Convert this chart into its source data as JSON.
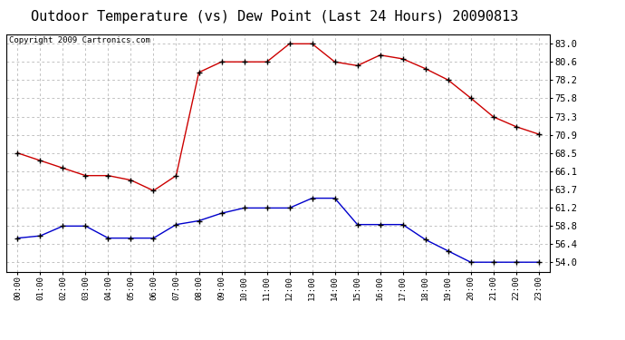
{
  "title": "Outdoor Temperature (vs) Dew Point (Last 24 Hours) 20090813",
  "copyright": "Copyright 2009 Cartronics.com",
  "x_labels": [
    "00:00",
    "01:00",
    "02:00",
    "03:00",
    "04:00",
    "05:00",
    "06:00",
    "07:00",
    "08:00",
    "09:00",
    "10:00",
    "11:00",
    "12:00",
    "13:00",
    "14:00",
    "15:00",
    "16:00",
    "17:00",
    "18:00",
    "19:00",
    "20:00",
    "21:00",
    "22:00",
    "23:00"
  ],
  "temp_data": [
    68.5,
    67.5,
    66.5,
    65.5,
    65.5,
    64.9,
    63.5,
    65.5,
    79.2,
    80.6,
    80.6,
    80.6,
    83.0,
    83.0,
    80.6,
    80.1,
    81.5,
    81.0,
    79.7,
    78.2,
    75.8,
    73.3,
    72.0,
    71.0
  ],
  "dew_data": [
    57.2,
    57.5,
    58.8,
    58.8,
    57.2,
    57.2,
    57.2,
    59.0,
    59.5,
    60.5,
    61.2,
    61.2,
    61.2,
    62.5,
    62.5,
    59.0,
    59.0,
    59.0,
    57.0,
    55.5,
    54.0,
    54.0,
    54.0,
    54.0
  ],
  "temp_color": "#cc0000",
  "dew_color": "#0000cc",
  "yticks": [
    54.0,
    56.4,
    58.8,
    61.2,
    63.7,
    66.1,
    68.5,
    70.9,
    73.3,
    75.8,
    78.2,
    80.6,
    83.0
  ],
  "ymin": 52.7,
  "ymax": 84.3,
  "bg_color": "#ffffff",
  "plot_bg_color": "#ffffff",
  "grid_color": "#aaaaaa",
  "title_fontsize": 11,
  "copyright_fontsize": 6.5
}
